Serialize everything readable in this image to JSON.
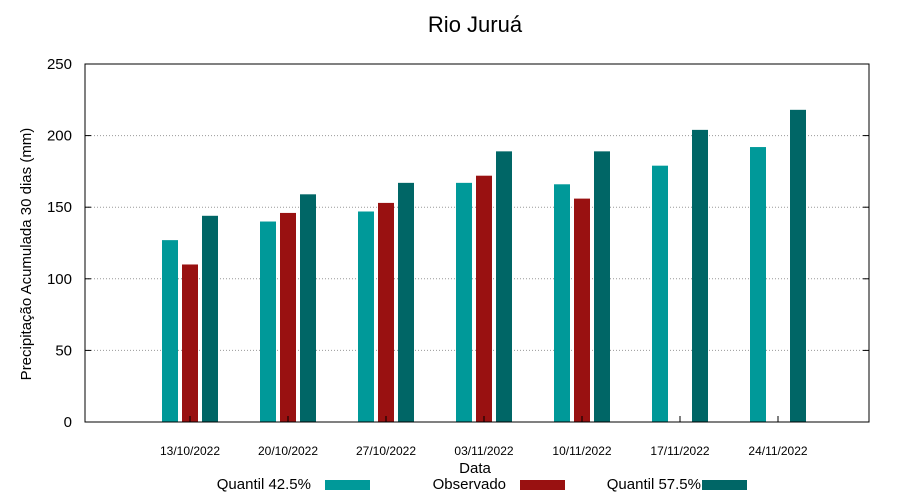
{
  "chart_data": {
    "type": "bar",
    "title": "Rio Juruá",
    "xlabel": "Data",
    "ylabel": "Precipitação Acumulada 30 dias (mm)",
    "ylim": [
      0,
      250
    ],
    "yticks": [
      0,
      50,
      100,
      150,
      200,
      250
    ],
    "grid": true,
    "legend_position": "bottom",
    "categories": [
      "13/10/2022",
      "20/10/2022",
      "27/10/2022",
      "03/11/2022",
      "10/11/2022",
      "17/11/2022",
      "24/11/2022"
    ],
    "series": [
      {
        "name": "Quantil 42.5%",
        "color": "#009999",
        "values": [
          127,
          140,
          147,
          167,
          166,
          179,
          192
        ]
      },
      {
        "name": "Observado",
        "color": "#991111",
        "values": [
          110,
          146,
          153,
          172,
          156,
          null,
          null
        ]
      },
      {
        "name": "Quantil 57.5%",
        "color": "#006666",
        "values": [
          144,
          159,
          167,
          189,
          189,
          204,
          218
        ]
      }
    ]
  }
}
